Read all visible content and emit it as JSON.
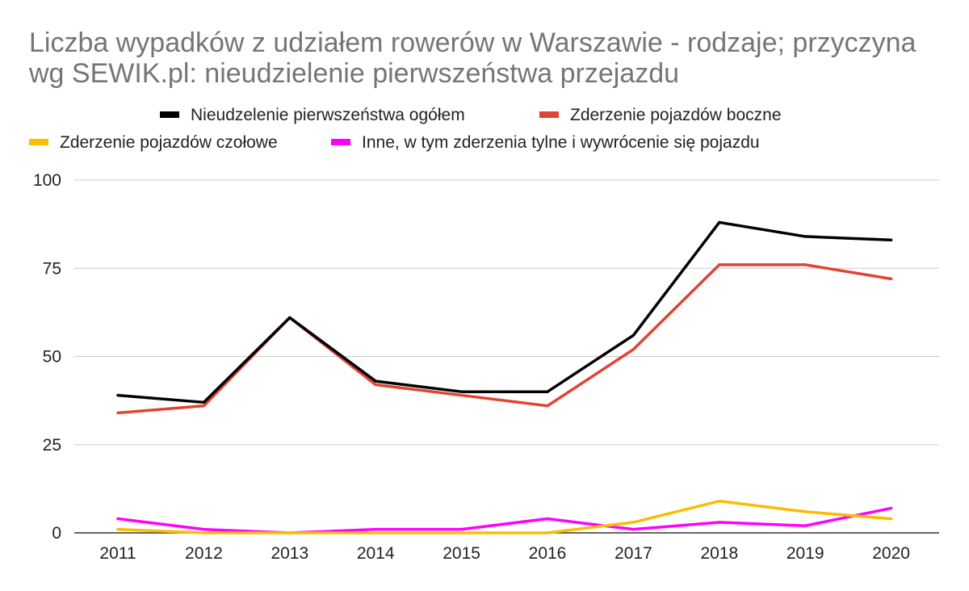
{
  "chart_data": {
    "type": "line",
    "title": "Liczba wypadków z udziałem rowerów w Warszawie - rodzaje; przyczyna wg SEWIK.pl: nieudzielenie pierwszeństwa przejazdu",
    "categories": [
      "2011",
      "2012",
      "2013",
      "2014",
      "2015",
      "2016",
      "2017",
      "2018",
      "2019",
      "2020"
    ],
    "ylim": [
      0,
      100
    ],
    "yticks": [
      0,
      25,
      50,
      75,
      100
    ],
    "grid": true,
    "legend_position": "top",
    "series": [
      {
        "name": "Nieudzelenie pierwszeństwa ogółem",
        "color": "#000000",
        "values": [
          39,
          37,
          61,
          43,
          40,
          40,
          56,
          88,
          84,
          83
        ]
      },
      {
        "name": "Zderzenie pojazdów boczne",
        "color": "#e34234",
        "values": [
          34,
          36,
          61,
          42,
          39,
          36,
          52,
          76,
          76,
          72
        ]
      },
      {
        "name": "Zderzenie pojazdów czołowe",
        "color": "#fbbc04",
        "values": [
          1,
          0,
          0,
          0,
          0,
          0,
          3,
          9,
          6,
          4
        ]
      },
      {
        "name": "Inne, w tym zderzenia tylne i wywrócenie się pojazdu",
        "color": "#ff00ff",
        "values": [
          4,
          1,
          0,
          1,
          1,
          4,
          1,
          3,
          2,
          7
        ]
      }
    ]
  }
}
